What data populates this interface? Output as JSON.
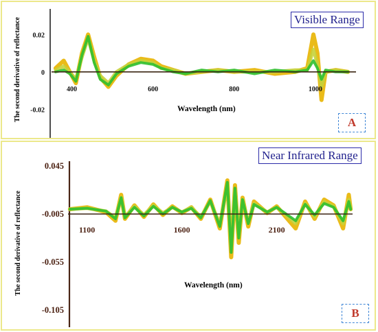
{
  "chart_data": [
    {
      "type": "line",
      "panel_title": "Visible Range",
      "panel_tag": "A",
      "xlabel": "Wavelength (nm)",
      "ylabel": "The second derivative of reflectance",
      "xlim": [
        350,
        1100
      ],
      "ylim": [
        -0.025,
        0.03
      ],
      "xticks": [
        400,
        600,
        800,
        1000
      ],
      "yticks": [
        0.02,
        0,
        -0.02
      ],
      "ytick_labels": [
        "0.02",
        "0",
        "-0.02"
      ],
      "colors": [
        "#e8b400",
        "#c7d23a",
        "#2fbf2f"
      ],
      "series": [
        {
          "values": [
            [
              360,
              0.002
            ],
            [
              380,
              0.006
            ],
            [
              395,
              0.0
            ],
            [
              410,
              -0.006
            ],
            [
              425,
              0.01
            ],
            [
              440,
              0.02
            ],
            [
              455,
              0.008
            ],
            [
              470,
              -0.003
            ],
            [
              490,
              -0.008
            ],
            [
              510,
              -0.002
            ],
            [
              540,
              0.004
            ],
            [
              570,
              0.007
            ],
            [
              600,
              0.006
            ],
            [
              620,
              0.003
            ],
            [
              650,
              0.001
            ],
            [
              680,
              -0.001
            ],
            [
              720,
              0.0
            ],
            [
              760,
              0.001
            ],
            [
              800,
              0.0
            ],
            [
              850,
              0.001
            ],
            [
              900,
              -0.001
            ],
            [
              950,
              0.0
            ],
            [
              980,
              0.002
            ],
            [
              995,
              0.02
            ],
            [
              1005,
              0.01
            ],
            [
              1015,
              -0.015
            ],
            [
              1025,
              0.0
            ],
            [
              1050,
              0.001
            ],
            [
              1080,
              0.0
            ]
          ]
        },
        {
          "values": [
            [
              360,
              0.001
            ],
            [
              380,
              0.003
            ],
            [
              395,
              0.0
            ],
            [
              410,
              -0.004
            ],
            [
              425,
              0.008
            ],
            [
              440,
              0.018
            ],
            [
              455,
              0.006
            ],
            [
              470,
              -0.002
            ],
            [
              490,
              -0.006
            ],
            [
              510,
              0.0
            ],
            [
              540,
              0.004
            ],
            [
              570,
              0.006
            ],
            [
              600,
              0.005
            ],
            [
              620,
              0.002
            ],
            [
              650,
              0.001
            ],
            [
              680,
              -0.001
            ],
            [
              720,
              0.0
            ],
            [
              760,
              0.001
            ],
            [
              800,
              0.0
            ],
            [
              850,
              0.0
            ],
            [
              900,
              0.0
            ],
            [
              950,
              0.001
            ],
            [
              980,
              0.001
            ],
            [
              995,
              0.012
            ],
            [
              1005,
              0.004
            ],
            [
              1015,
              -0.008
            ],
            [
              1025,
              0.0
            ],
            [
              1050,
              0.001
            ],
            [
              1080,
              0.0
            ]
          ]
        },
        {
          "values": [
            [
              360,
              0.0
            ],
            [
              380,
              0.001
            ],
            [
              395,
              -0.001
            ],
            [
              410,
              -0.005
            ],
            [
              425,
              0.009
            ],
            [
              440,
              0.019
            ],
            [
              455,
              0.005
            ],
            [
              470,
              -0.004
            ],
            [
              490,
              -0.007
            ],
            [
              510,
              -0.001
            ],
            [
              540,
              0.003
            ],
            [
              570,
              0.005
            ],
            [
              600,
              0.004
            ],
            [
              620,
              0.002
            ],
            [
              650,
              0.0
            ],
            [
              680,
              -0.001
            ],
            [
              720,
              0.001
            ],
            [
              760,
              0.0
            ],
            [
              800,
              0.001
            ],
            [
              850,
              -0.001
            ],
            [
              900,
              0.001
            ],
            [
              950,
              0.0
            ],
            [
              980,
              0.001
            ],
            [
              995,
              0.006
            ],
            [
              1005,
              0.002
            ],
            [
              1015,
              -0.004
            ],
            [
              1025,
              0.001
            ],
            [
              1050,
              0.0
            ],
            [
              1080,
              0.0
            ]
          ]
        }
      ]
    },
    {
      "type": "line",
      "panel_title": "Near Infrared Range",
      "panel_tag": "B",
      "xlabel": "Wavelength (nm)",
      "ylabel": "The second derivative of reflectance",
      "xlim": [
        1000,
        2500
      ],
      "ylim": [
        -0.11,
        0.05
      ],
      "xticks": [
        1100,
        1600,
        2100
      ],
      "yticks": [
        0.045,
        -0.005,
        -0.055,
        -0.105
      ],
      "ytick_labels": [
        "0.045",
        "-0.005",
        "-0.055",
        "-0.105"
      ],
      "colors": [
        "#e8b400",
        "#c7d23a",
        "#2fbf2f"
      ],
      "series": [
        {
          "values": [
            [
              1010,
              0.0
            ],
            [
              1100,
              0.002
            ],
            [
              1200,
              -0.003
            ],
            [
              1250,
              -0.012
            ],
            [
              1280,
              0.015
            ],
            [
              1300,
              -0.01
            ],
            [
              1350,
              0.004
            ],
            [
              1400,
              -0.008
            ],
            [
              1450,
              0.005
            ],
            [
              1500,
              -0.006
            ],
            [
              1550,
              0.003
            ],
            [
              1600,
              -0.004
            ],
            [
              1650,
              0.002
            ],
            [
              1700,
              -0.01
            ],
            [
              1750,
              0.01
            ],
            [
              1800,
              -0.02
            ],
            [
              1840,
              0.03
            ],
            [
              1860,
              -0.05
            ],
            [
              1880,
              0.025
            ],
            [
              1900,
              -0.035
            ],
            [
              1920,
              0.012
            ],
            [
              1950,
              -0.018
            ],
            [
              1980,
              0.008
            ],
            [
              2050,
              -0.004
            ],
            [
              2100,
              0.003
            ],
            [
              2200,
              -0.02
            ],
            [
              2250,
              0.008
            ],
            [
              2300,
              -0.01
            ],
            [
              2350,
              0.01
            ],
            [
              2400,
              0.004
            ],
            [
              2450,
              -0.02
            ],
            [
              2480,
              0.015
            ],
            [
              2490,
              0.0
            ]
          ]
        },
        {
          "values": [
            [
              1010,
              0.0
            ],
            [
              1100,
              0.001
            ],
            [
              1200,
              -0.002
            ],
            [
              1250,
              -0.009
            ],
            [
              1280,
              0.012
            ],
            [
              1300,
              -0.008
            ],
            [
              1350,
              0.003
            ],
            [
              1400,
              -0.006
            ],
            [
              1450,
              0.004
            ],
            [
              1500,
              -0.004
            ],
            [
              1550,
              0.002
            ],
            [
              1600,
              -0.003
            ],
            [
              1650,
              0.002
            ],
            [
              1700,
              -0.008
            ],
            [
              1750,
              0.008
            ],
            [
              1800,
              -0.015
            ],
            [
              1840,
              0.025
            ],
            [
              1860,
              -0.04
            ],
            [
              1880,
              0.02
            ],
            [
              1900,
              -0.028
            ],
            [
              1920,
              0.01
            ],
            [
              1950,
              -0.014
            ],
            [
              1980,
              0.006
            ],
            [
              2050,
              -0.003
            ],
            [
              2100,
              0.002
            ],
            [
              2200,
              -0.015
            ],
            [
              2250,
              0.006
            ],
            [
              2300,
              -0.008
            ],
            [
              2350,
              0.008
            ],
            [
              2400,
              0.003
            ],
            [
              2450,
              -0.015
            ],
            [
              2480,
              0.01
            ],
            [
              2490,
              0.0
            ]
          ]
        },
        {
          "values": [
            [
              1010,
              0.0
            ],
            [
              1100,
              0.001
            ],
            [
              1200,
              -0.002
            ],
            [
              1250,
              -0.01
            ],
            [
              1280,
              0.012
            ],
            [
              1300,
              -0.009
            ],
            [
              1350,
              0.002
            ],
            [
              1400,
              -0.007
            ],
            [
              1450,
              0.003
            ],
            [
              1500,
              -0.005
            ],
            [
              1550,
              0.002
            ],
            [
              1600,
              -0.003
            ],
            [
              1650,
              0.001
            ],
            [
              1700,
              -0.009
            ],
            [
              1750,
              0.009
            ],
            [
              1800,
              -0.018
            ],
            [
              1840,
              0.028
            ],
            [
              1860,
              -0.045
            ],
            [
              1880,
              0.022
            ],
            [
              1900,
              -0.03
            ],
            [
              1920,
              0.01
            ],
            [
              1950,
              -0.015
            ],
            [
              1980,
              0.005
            ],
            [
              2050,
              -0.003
            ],
            [
              2100,
              0.002
            ],
            [
              2200,
              -0.012
            ],
            [
              2250,
              0.005
            ],
            [
              2300,
              -0.006
            ],
            [
              2350,
              0.006
            ],
            [
              2400,
              0.002
            ],
            [
              2450,
              -0.012
            ],
            [
              2480,
              0.008
            ],
            [
              2490,
              0.0
            ]
          ]
        }
      ]
    }
  ]
}
